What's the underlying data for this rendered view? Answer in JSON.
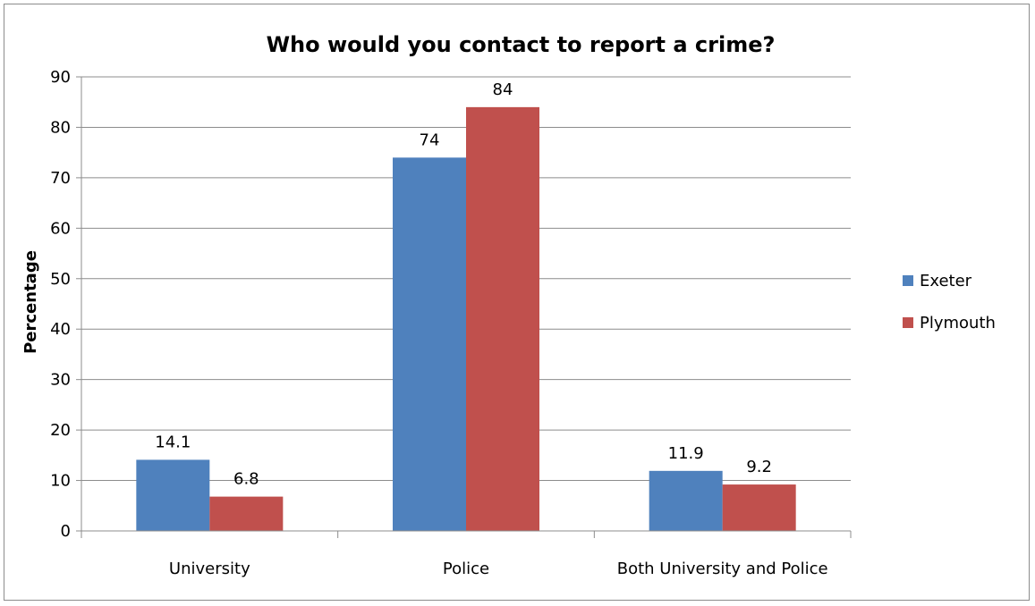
{
  "chart_data": {
    "type": "bar",
    "title": "Who would you contact to report a crime?",
    "xlabel": "",
    "ylabel": "Percentage",
    "categories": [
      "University",
      "Police",
      "Both University and Police"
    ],
    "series": [
      {
        "name": "Exeter",
        "values": [
          14.1,
          74,
          11.9
        ],
        "color": "#4f81bd"
      },
      {
        "name": "Plymouth",
        "values": [
          6.8,
          84,
          9.2
        ],
        "color": "#c0504d"
      }
    ],
    "ylim": [
      0,
      90
    ],
    "yticks": [
      0,
      10,
      20,
      30,
      40,
      50,
      60,
      70,
      80,
      90
    ],
    "grid": true,
    "legend_position": "right"
  }
}
